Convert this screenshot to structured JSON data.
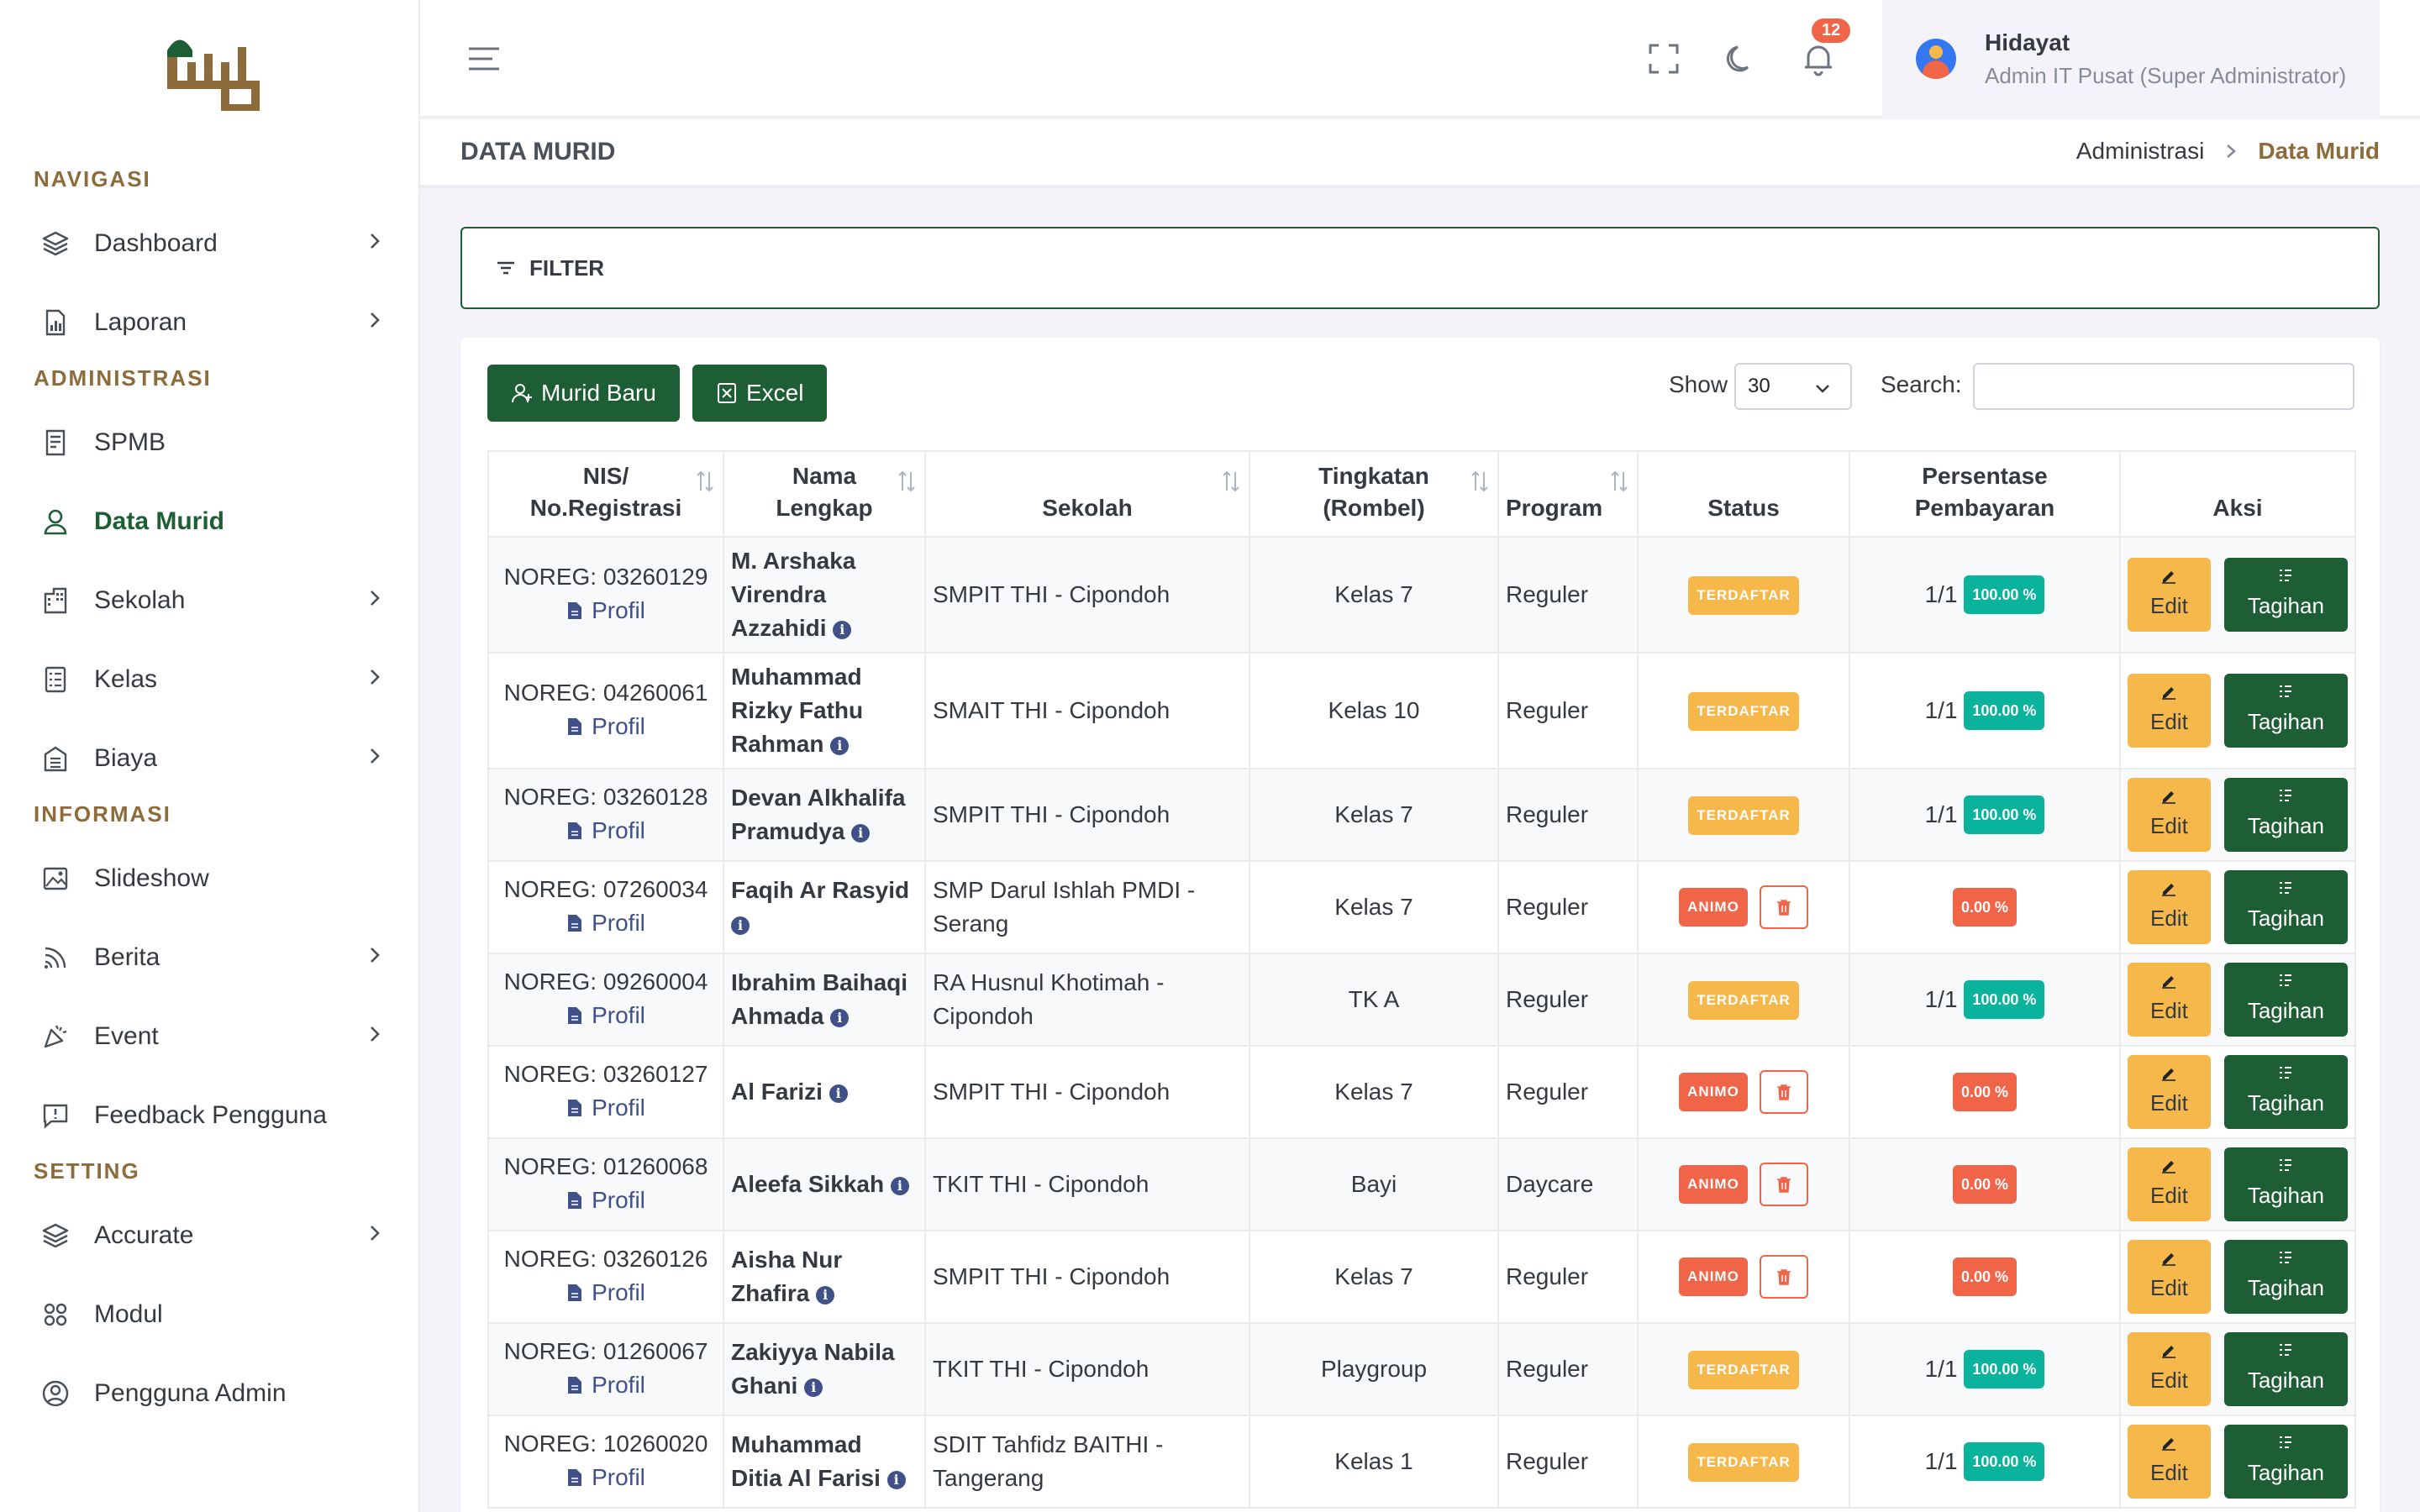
{
  "colors": {
    "primary": "#1e5e35",
    "accent": "#8d6b3a",
    "warning": "#f7b84b",
    "danger": "#f06548",
    "success": "#0ab39c",
    "link": "#405189"
  },
  "sidebar": {
    "logo_icon": "brand-logo",
    "sections": [
      {
        "title": "NAVIGASI",
        "items": [
          {
            "label": "Dashboard",
            "icon": "layers-icon",
            "chevron": true
          },
          {
            "label": "Laporan",
            "icon": "report-icon",
            "chevron": true
          }
        ]
      },
      {
        "title": "ADMINISTRASI",
        "items": [
          {
            "label": "SPMB",
            "icon": "form-icon",
            "chevron": false
          },
          {
            "label": "Data Murid",
            "icon": "user-icon",
            "chevron": false,
            "active": true
          },
          {
            "label": "Sekolah",
            "icon": "building-icon",
            "chevron": true
          },
          {
            "label": "Kelas",
            "icon": "class-icon",
            "chevron": true
          },
          {
            "label": "Biaya",
            "icon": "cost-icon",
            "chevron": true
          }
        ]
      },
      {
        "title": "INFORMASI",
        "items": [
          {
            "label": "Slideshow",
            "icon": "image-icon",
            "chevron": false
          },
          {
            "label": "Berita",
            "icon": "rss-icon",
            "chevron": true
          },
          {
            "label": "Event",
            "icon": "event-icon",
            "chevron": true
          },
          {
            "label": "Feedback Pengguna",
            "icon": "feedback-icon",
            "chevron": false
          }
        ]
      },
      {
        "title": "SETTING",
        "items": [
          {
            "label": "Accurate",
            "icon": "layers-icon",
            "chevron": true
          },
          {
            "label": "Modul",
            "icon": "grid-icon",
            "chevron": false
          },
          {
            "label": "Pengguna Admin",
            "icon": "user-circle-icon",
            "chevron": false
          }
        ]
      }
    ]
  },
  "topbar": {
    "notification_count": "12",
    "user": {
      "name": "Hidayat",
      "role": "Admin IT Pusat (Super Administrator)"
    }
  },
  "page": {
    "title": "DATA MURID",
    "breadcrumb": {
      "parent": "Administrasi",
      "current": "Data Murid"
    }
  },
  "filter": {
    "label": "FILTER"
  },
  "toolbar": {
    "new_label": "Murid Baru",
    "excel_label": "Excel",
    "show_label": "Show",
    "show_value": "30",
    "search_label": "Search:",
    "search_value": ""
  },
  "table": {
    "headers": {
      "nis_l1": "NIS/",
      "nis_l2": "No.Registrasi",
      "nama_l1": "Nama",
      "nama_l2": "Lengkap",
      "sekolah": "Sekolah",
      "tingkat_l1": "Tingkatan",
      "tingkat_l2": "(Rombel)",
      "program": "Program",
      "status": "Status",
      "persen_l1": "Persentase",
      "persen_l2": "Pembayaran",
      "aksi": "Aksi"
    },
    "profil_label": "Profil",
    "edit_label": "Edit",
    "tagihan_label": "Tagihan",
    "rows": [
      {
        "noreg": "NOREG: 03260129",
        "nama": "M. Arshaka Virendra Azzahidi",
        "sekolah": "SMPIT THI - Cipondoh",
        "tingkat": "Kelas 7",
        "program": "Reguler",
        "status": "TERDAFTAR",
        "fraction": "1/1",
        "percent": "100.00 %"
      },
      {
        "noreg": "NOREG: 04260061",
        "nama": "Muhammad Rizky Fathu Rahman",
        "sekolah": "SMAIT THI - Cipondoh",
        "tingkat": "Kelas 10",
        "program": "Reguler",
        "status": "TERDAFTAR",
        "fraction": "1/1",
        "percent": "100.00 %"
      },
      {
        "noreg": "NOREG: 03260128",
        "nama": "Devan Alkhalifa Pramudya",
        "sekolah": "SMPIT THI - Cipondoh",
        "tingkat": "Kelas 7",
        "program": "Reguler",
        "status": "TERDAFTAR",
        "fraction": "1/1",
        "percent": "100.00 %"
      },
      {
        "noreg": "NOREG: 07260034",
        "nama": "Faqih Ar Rasyid",
        "sekolah": "SMP Darul Ishlah PMDI - Serang",
        "tingkat": "Kelas 7",
        "program": "Reguler",
        "status": "ANIMO",
        "fraction": "",
        "percent": "0.00 %"
      },
      {
        "noreg": "NOREG: 09260004",
        "nama": "Ibrahim Baihaqi Ahmada",
        "sekolah": "RA Husnul Khotimah - Cipondoh",
        "tingkat": "TK A",
        "program": "Reguler",
        "status": "TERDAFTAR",
        "fraction": "1/1",
        "percent": "100.00 %"
      },
      {
        "noreg": "NOREG: 03260127",
        "nama": "Al Farizi",
        "sekolah": "SMPIT THI - Cipondoh",
        "tingkat": "Kelas 7",
        "program": "Reguler",
        "status": "ANIMO",
        "fraction": "",
        "percent": "0.00 %"
      },
      {
        "noreg": "NOREG: 01260068",
        "nama": "Aleefa Sikkah",
        "sekolah": "TKIT THI - Cipondoh",
        "tingkat": "Bayi",
        "program": "Daycare",
        "status": "ANIMO",
        "fraction": "",
        "percent": "0.00 %"
      },
      {
        "noreg": "NOREG: 03260126",
        "nama": "Aisha Nur Zhafira",
        "sekolah": "SMPIT THI - Cipondoh",
        "tingkat": "Kelas 7",
        "program": "Reguler",
        "status": "ANIMO",
        "fraction": "",
        "percent": "0.00 %"
      },
      {
        "noreg": "NOREG: 01260067",
        "nama": "Zakiyya Nabila Ghani",
        "sekolah": "TKIT THI - Cipondoh",
        "tingkat": "Playgroup",
        "program": "Reguler",
        "status": "TERDAFTAR",
        "fraction": "1/1",
        "percent": "100.00 %"
      },
      {
        "noreg": "NOREG: 10260020",
        "nama": "Muhammad Ditia Al Farisi",
        "sekolah": "SDIT Tahfidz BAITHI - Tangerang",
        "tingkat": "Kelas 1",
        "program": "Reguler",
        "status": "TERDAFTAR",
        "fraction": "1/1",
        "percent": "100.00 %"
      }
    ]
  }
}
